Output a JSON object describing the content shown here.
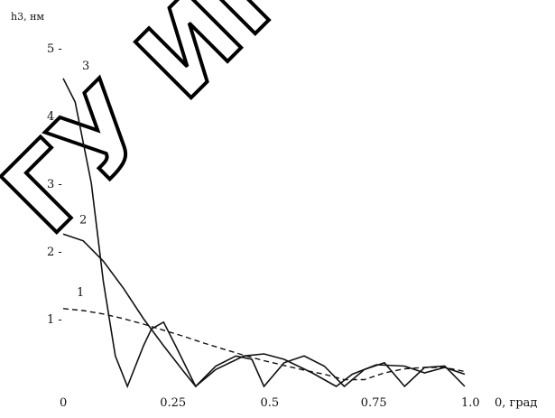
{
  "chart_data": {
    "type": "line",
    "xlabel": "0, град",
    "ylabel": "h3, нм",
    "xlim": [
      0,
      1.0
    ],
    "ylim": [
      0,
      5
    ],
    "x_ticks": [
      "0",
      "0.25",
      "0.5",
      "0.75",
      "1.0"
    ],
    "y_ticks": [
      "1",
      "2",
      "3",
      "4",
      "5"
    ],
    "grid": false,
    "series": [
      {
        "name": "1",
        "style": "dashed-then-solid",
        "x": [
          0,
          0.05,
          0.1,
          0.15,
          0.2,
          0.25,
          0.3,
          0.35,
          0.4,
          0.45,
          0.5,
          0.55,
          0.6,
          0.65,
          0.7,
          0.75,
          0.8,
          0.85,
          0.9,
          0.95,
          1.0
        ],
        "y": [
          1.15,
          1.12,
          1.07,
          1.0,
          0.92,
          0.83,
          0.74,
          0.64,
          0.55,
          0.46,
          0.38,
          0.31,
          0.24,
          0.18,
          0.1,
          0.1,
          0.2,
          0.26,
          0.28,
          0.28,
          0.22
        ]
      },
      {
        "name": "2",
        "style": "solid",
        "x": [
          0,
          0.05,
          0.1,
          0.15,
          0.2,
          0.25,
          0.3,
          0.33,
          0.38,
          0.45,
          0.5,
          0.55,
          0.62,
          0.68,
          0.72,
          0.78,
          0.85,
          0.9,
          0.95,
          1.0
        ],
        "y": [
          2.25,
          2.15,
          1.85,
          1.45,
          1.0,
          0.6,
          0.22,
          0.0,
          0.25,
          0.45,
          0.48,
          0.4,
          0.2,
          0.0,
          0.18,
          0.32,
          0.3,
          0.2,
          0.28,
          0.18
        ]
      },
      {
        "name": "3",
        "style": "solid",
        "x": [
          0,
          0.03,
          0.07,
          0.1,
          0.13,
          0.16,
          0.2,
          0.22,
          0.25,
          0.28,
          0.33,
          0.38,
          0.43,
          0.47,
          0.5,
          0.55,
          0.6,
          0.65,
          0.7,
          0.75,
          0.8,
          0.85,
          0.9,
          0.95,
          1.0
        ],
        "y": [
          4.55,
          4.2,
          3.0,
          1.55,
          0.45,
          0.0,
          0.6,
          0.85,
          0.95,
          0.6,
          0.0,
          0.3,
          0.45,
          0.4,
          0.0,
          0.35,
          0.45,
          0.3,
          0.0,
          0.25,
          0.35,
          0.0,
          0.28,
          0.3,
          0.0
        ]
      }
    ]
  },
  "watermark_text": "ГУ ИМ."
}
